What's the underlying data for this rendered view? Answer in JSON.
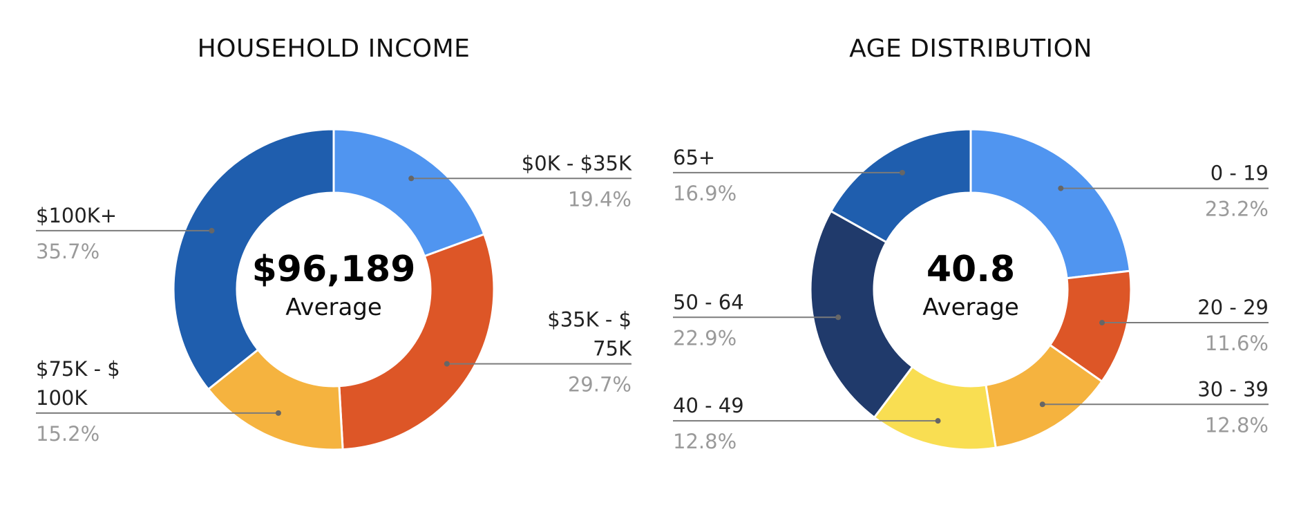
{
  "chart_data": [
    {
      "type": "pie",
      "title": "HOUSEHOLD INCOME",
      "center": {
        "value": "$96,189",
        "label": "Average"
      },
      "slices": [
        {
          "label": "$0K - $35K",
          "value": 19.4,
          "pct_label": "19.4%",
          "color": "#5095f0",
          "label_side": "right",
          "label_lines": [
            "$0K - $35K"
          ]
        },
        {
          "label": "$35K - $ 75K",
          "value": 29.7,
          "pct_label": "29.7%",
          "color": "#dd5627",
          "label_side": "right",
          "label_lines": [
            "$35K - $",
            "75K"
          ]
        },
        {
          "label": "$75K - $ 100K",
          "value": 15.2,
          "pct_label": "15.2%",
          "color": "#f5b33f",
          "label_side": "left",
          "label_lines": [
            "$75K - $",
            "100K"
          ]
        },
        {
          "label": "$100K+",
          "value": 35.7,
          "pct_label": "35.7%",
          "color": "#1f5eae",
          "label_side": "left",
          "label_lines": [
            "$100K+"
          ]
        }
      ]
    },
    {
      "type": "pie",
      "title": "AGE DISTRIBUTION",
      "center": {
        "value": "40.8",
        "label": "Average"
      },
      "slices": [
        {
          "label": "0 - 19",
          "value": 23.2,
          "pct_label": "23.2%",
          "color": "#5095f0",
          "label_side": "right",
          "label_lines": [
            "0 - 19"
          ]
        },
        {
          "label": "20 - 29",
          "value": 11.6,
          "pct_label": "11.6%",
          "color": "#dd5627",
          "label_side": "right",
          "label_lines": [
            "20 - 29"
          ]
        },
        {
          "label": "30 - 39",
          "value": 12.8,
          "pct_label": "12.8%",
          "color": "#f5b33f",
          "label_side": "right",
          "label_lines": [
            "30 - 39"
          ]
        },
        {
          "label": "40 - 49",
          "value": 12.8,
          "pct_label": "12.8%",
          "color": "#f9de52",
          "label_side": "left",
          "label_lines": [
            "40 - 49"
          ]
        },
        {
          "label": "50 - 64",
          "value": 22.9,
          "pct_label": "22.9%",
          "color": "#203a6b",
          "label_side": "left",
          "label_lines": [
            "50 - 64"
          ]
        },
        {
          "label": "65+",
          "value": 16.9,
          "pct_label": "16.9%",
          "color": "#1f5eae",
          "label_side": "left",
          "label_lines": [
            "65+"
          ]
        }
      ]
    }
  ]
}
